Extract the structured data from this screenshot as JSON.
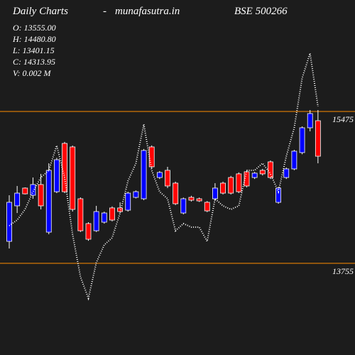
{
  "chart_data": {
    "type": "candlestick",
    "title": "Daily Charts",
    "separator": "-",
    "site": "munafasutra.in",
    "symbol": "BSE 500266",
    "info": [
      "O: 13555.00",
      "H: 14480.80",
      "L: 13401.15",
      "C: 14313.95",
      "V: 0.002  M"
    ],
    "categories": [
      null,
      null,
      null,
      null,
      null,
      null,
      null,
      null,
      null,
      null,
      null,
      null,
      null,
      null,
      null,
      null,
      null,
      null,
      null,
      null,
      null,
      null,
      null,
      null,
      null,
      null,
      null,
      null,
      null,
      null,
      null,
      null,
      null,
      null,
      null,
      null,
      null,
      null,
      null,
      null
    ],
    "open": [
      14004,
      14406,
      14607,
      14526,
      14647,
      14108,
      14566,
      15113,
      15073,
      14486,
      14205,
      14124,
      14221,
      14382,
      14382,
      14357,
      14502,
      14486,
      15073,
      14727,
      14808,
      14663,
      14325,
      14502,
      14486,
      14446,
      14486,
      14663,
      14727,
      14768,
      14792,
      14727,
      14808,
      14904,
      14446,
      14727,
      14824,
      15009,
      15290,
      15370
    ],
    "high": [
      14526,
      14631,
      14615,
      14727,
      14768,
      14888,
      14950,
      15130,
      15089,
      14502,
      14220,
      14406,
      14340,
      14400,
      14446,
      14566,
      14580,
      15050,
      15090,
      14800,
      14848,
      14680,
      14500,
      14520,
      14500,
      14460,
      14663,
      14680,
      14745,
      14785,
      14810,
      14790,
      14825,
      14920,
      14620,
      14840,
      15040,
      15305,
      15491,
      15491
    ],
    "low": [
      13923,
      14325,
      14535,
      14486,
      14366,
      14084,
      14550,
      14550,
      14341,
      14110,
      14010,
      14110,
      14205,
      14230,
      14325,
      14341,
      14490,
      14470,
      14830,
      14710,
      14607,
      14415,
      14310,
      14455,
      14450,
      14335,
      14462,
      14535,
      14535,
      14550,
      14615,
      14710,
      14750,
      14710,
      14430,
      14710,
      14810,
      14990,
      15250,
      14888
    ],
    "close": [
      14446,
      14550,
      14542,
      14647,
      14406,
      14808,
      14928,
      14566,
      14366,
      14124,
      14028,
      14341,
      14325,
      14245,
      14341,
      14550,
      14566,
      15033,
      14848,
      14784,
      14631,
      14430,
      14486,
      14470,
      14462,
      14349,
      14607,
      14550,
      14550,
      14566,
      14631,
      14776,
      14768,
      14727,
      14607,
      14824,
      15025,
      15290,
      15451,
      14968
    ],
    "average": [
      14181,
      14245,
      14366,
      14566,
      14727,
      14808,
      15089,
      14727,
      14084,
      13602,
      13360,
      13763,
      13964,
      14044,
      14325,
      14687,
      14888,
      15330,
      14808,
      14566,
      14486,
      14124,
      14205,
      14165,
      14165,
      14004,
      14486,
      14406,
      14366,
      14406,
      14808,
      14808,
      14888,
      14768,
      14566,
      14968,
      15290,
      15853,
      16134,
      15531
    ],
    "up_color": "#0000ff",
    "down_color": "#ff0000",
    "average_color": "#ffffff",
    "grid_color": "#ff8c00",
    "ylim": [
      12717,
      16737
    ],
    "yticks": [
      15475,
      13755
    ]
  }
}
